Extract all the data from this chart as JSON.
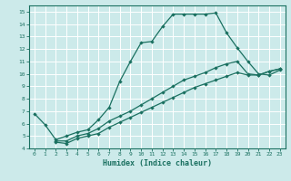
{
  "xlabel": "Humidex (Indice chaleur)",
  "bg_color": "#cceaea",
  "grid_color": "#ffffff",
  "line_color": "#1a7060",
  "xlim": [
    -0.5,
    23.5
  ],
  "ylim": [
    4,
    15.5
  ],
  "xticks": [
    0,
    1,
    2,
    3,
    4,
    5,
    6,
    7,
    8,
    9,
    10,
    11,
    12,
    13,
    14,
    15,
    16,
    17,
    18,
    19,
    20,
    21,
    22,
    23
  ],
  "yticks": [
    4,
    5,
    6,
    7,
    8,
    9,
    10,
    11,
    12,
    13,
    14,
    15
  ],
  "line1_x": [
    0,
    1,
    2,
    3,
    4,
    5,
    6,
    7,
    8,
    9,
    10,
    11,
    12,
    13,
    14,
    15,
    16,
    17,
    18,
    19,
    20,
    21,
    22,
    23
  ],
  "line1_y": [
    6.8,
    5.9,
    4.7,
    5.0,
    5.3,
    5.5,
    6.3,
    7.3,
    9.4,
    11.0,
    12.5,
    12.6,
    13.8,
    14.8,
    14.8,
    14.8,
    14.8,
    14.9,
    13.3,
    12.1,
    11.0,
    10.0,
    9.9,
    10.3
  ],
  "line2_x": [
    2,
    3,
    4,
    5,
    6,
    7,
    8,
    9,
    10,
    11,
    12,
    13,
    14,
    15,
    16,
    17,
    18,
    19,
    20,
    21,
    22,
    23
  ],
  "line2_y": [
    4.6,
    4.6,
    5.0,
    5.2,
    5.6,
    6.2,
    6.6,
    7.0,
    7.5,
    8.0,
    8.5,
    9.0,
    9.5,
    9.8,
    10.1,
    10.5,
    10.8,
    11.0,
    10.0,
    9.9,
    10.2,
    10.4
  ],
  "line3_x": [
    2,
    3,
    4,
    5,
    6,
    7,
    8,
    9,
    10,
    11,
    12,
    13,
    14,
    15,
    16,
    17,
    18,
    19,
    20,
    21,
    22,
    23
  ],
  "line3_y": [
    4.5,
    4.4,
    4.8,
    5.0,
    5.2,
    5.7,
    6.1,
    6.5,
    6.9,
    7.3,
    7.7,
    8.1,
    8.5,
    8.9,
    9.2,
    9.5,
    9.8,
    10.1,
    9.9,
    9.9,
    10.2,
    10.4
  ]
}
